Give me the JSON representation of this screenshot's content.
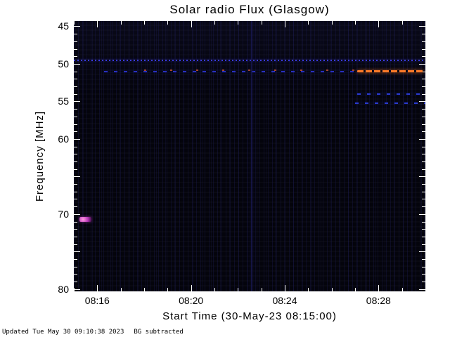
{
  "title": "Solar radio Flux (Glasgow)",
  "footer": {
    "updated": "Updated Tue May 30 09:10:38 2023",
    "note": "BG subtracted"
  },
  "chart_data": {
    "type": "heatmap",
    "title": "Solar radio Flux (Glasgow)",
    "xlabel": "Start Time (30-May-23 08:15:00)",
    "ylabel": "Frequency [MHz]",
    "x_start_time": "08:15:00",
    "x_total_minutes": 15,
    "x_ticks": [
      {
        "label": "08:16",
        "t": 1
      },
      {
        "label": "08:20",
        "t": 5
      },
      {
        "label": "08:24",
        "t": 9
      },
      {
        "label": "08:28",
        "t": 13
      }
    ],
    "x_minor_step_minutes": 1,
    "y_range_mhz": [
      44.3,
      80.3
    ],
    "y_axis_inverted": true,
    "y_ticks": [
      {
        "label": "45",
        "f": 45
      },
      {
        "label": "50",
        "f": 50
      },
      {
        "label": "55",
        "f": 55
      },
      {
        "label": "60",
        "f": 60
      },
      {
        "label": "",
        "f": 65
      },
      {
        "label": "70",
        "f": 70
      },
      {
        "label": "",
        "f": 75
      },
      {
        "label": "80",
        "f": 80
      }
    ],
    "y_minor_step_mhz": 1,
    "background_color": "#04040c",
    "colors": {
      "page_bg": "#ffffff",
      "axis_text": "#000000",
      "tick": "#ffffff",
      "rfi_blue": "#3a3ae0",
      "burst_orange": "#ff7a28",
      "blob_magenta": "#b838b8"
    },
    "features": [
      {
        "name": "rfi-line-49-5mhz",
        "kind": "dotted-line",
        "f": 49.5,
        "t0": 0,
        "t1": 15,
        "color": "#3a3ae0"
      },
      {
        "name": "rfi-line-51mhz",
        "kind": "dashed-line",
        "f": 51.0,
        "t0": 1.3,
        "t1": 12.1,
        "color": "#2830c0"
      },
      {
        "name": "sparse-dots-51mhz",
        "kind": "sparse-dots",
        "f": 50.8,
        "t0": 3.0,
        "t1": 12.0,
        "color": "#c05030"
      },
      {
        "name": "radio-burst-51mhz",
        "kind": "bright-segment",
        "f": 50.9,
        "t0": 12.1,
        "t1": 14.9,
        "color": "#ff7a28"
      },
      {
        "name": "rfi-line-54mhz",
        "kind": "dashed-line",
        "f": 54.0,
        "t0": 12.1,
        "t1": 15,
        "color": "#2a3ad0"
      },
      {
        "name": "rfi-line-55mhz",
        "kind": "dashed-line",
        "f": 55.2,
        "t0": 12.0,
        "t1": 15,
        "color": "#2a3ad0"
      },
      {
        "name": "point-source-70-7mhz",
        "kind": "blob",
        "f": 70.7,
        "t0": 0.25,
        "t1": 0.75,
        "color": "#b838b8"
      },
      {
        "name": "vertical-event-0822",
        "kind": "vertical-line",
        "t": 7.6,
        "color": "#1a1a5a",
        "opacity": 0.6
      }
    ]
  }
}
